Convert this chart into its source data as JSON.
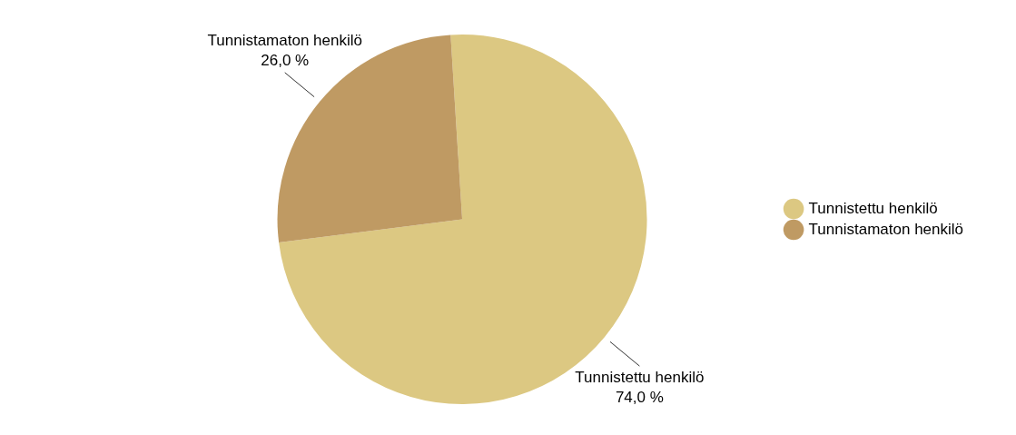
{
  "chart_data": {
    "type": "pie",
    "categories": [
      "Tunnistettu henkilö",
      "Tunnistamaton henkilö"
    ],
    "values": [
      74,
      26
    ],
    "value_labels": [
      "74,0 %",
      "26,0 %"
    ],
    "colors": [
      "#dcc882",
      "#bf9a63"
    ],
    "legend": "right"
  }
}
